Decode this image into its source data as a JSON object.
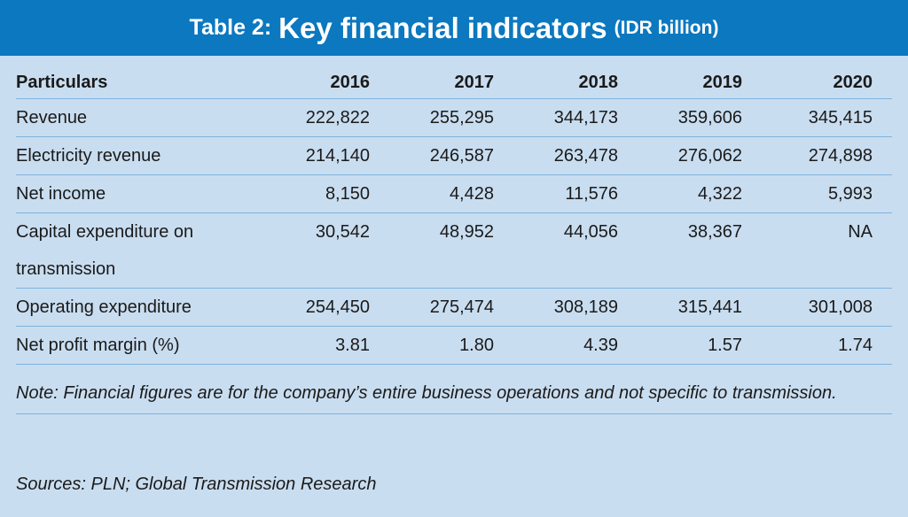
{
  "title": {
    "prefix": "Table 2:",
    "main": "Key financial indicators",
    "unit": "(IDR billion)"
  },
  "table": {
    "headers": [
      "Particulars",
      "2016",
      "2017",
      "2018",
      "2019",
      "2020"
    ],
    "rows": [
      [
        "Revenue",
        "222,822",
        "255,295",
        "344,173",
        "359,606",
        "345,415"
      ],
      [
        "Electricity revenue",
        "214,140",
        "246,587",
        "263,478",
        "276,062",
        "274,898"
      ],
      [
        "Net income",
        "8,150",
        "4,428",
        "11,576",
        "4,322",
        "5,993"
      ],
      [
        "Capital expenditure on\ntransmission",
        "30,542",
        "48,952",
        "44,056",
        "38,367",
        "NA"
      ],
      [
        "Operating expenditure",
        "254,450",
        "275,474",
        "308,189",
        "315,441",
        "301,008"
      ],
      [
        "Net profit margin (%)",
        "3.81",
        "1.80",
        "4.39",
        "1.57",
        "1.74"
      ]
    ]
  },
  "note": "Note: Financial figures are for the company’s entire business operations and not specific to transmission.",
  "sources": "Sources: PLN; Global Transmission Research",
  "colors": {
    "title_bg": "#0b78bf",
    "body_bg": "#c9ddf0",
    "rule": "#7fb2dd"
  }
}
